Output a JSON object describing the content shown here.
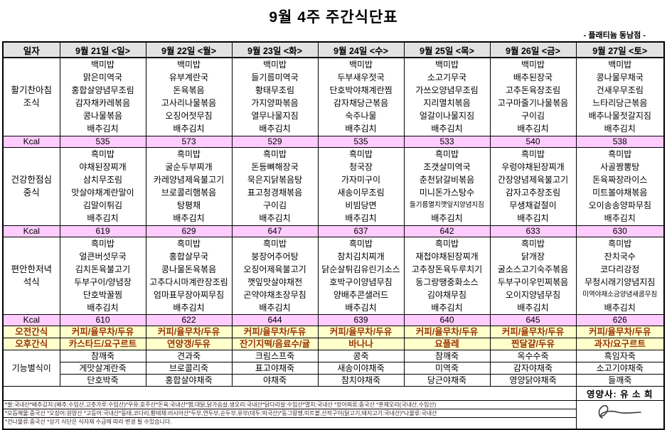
{
  "title": "9월 4주 주간식단표",
  "branch": "- 플래티늄 동남점 -",
  "header": {
    "date_label": "일자",
    "days": [
      "9월 21일 <일>",
      "9월 22일 <월>",
      "9월 23일 <화>",
      "9월 24일 <수>",
      "9월 25일 <목>",
      "9월 26일 <금>",
      "9월 27일 <토>"
    ]
  },
  "kcal_label": "Kcal",
  "meals": {
    "breakfast": {
      "label_lines": [
        "활기찬아침",
        "조식"
      ],
      "days": [
        [
          "백미밥",
          "맑은미역국",
          "홍합살양념무조림",
          "감자채카레볶음",
          "콩나물볶음",
          "배추김치"
        ],
        [
          "백미밥",
          "유부계란국",
          "돈육볶음",
          "고사리나물볶음",
          "오징어젓무침",
          "배추김치"
        ],
        [
          "백미밥",
          "들기름미역국",
          "황태무조림",
          "가지양파볶음",
          "열무나물지짐",
          "배추김치"
        ],
        [
          "백미밥",
          "두부새우젓국",
          "단호박야채계란찜",
          "감자채당근볶음",
          "숙주나물",
          "배추김치"
        ],
        [
          "백미밥",
          "소고기무국",
          "가쓰오양념무조림",
          "지리멸치볶음",
          "얼갈이나물지짐",
          "배추김치"
        ],
        [
          "백미밥",
          "배추된장국",
          "고추돈육장조림",
          "고구마줄기나물볶음",
          "구이김",
          "배추김치"
        ],
        [
          "백미밥",
          "콩나물무채국",
          "건새우무조림",
          "느타리당근볶음",
          "배추나물젓갈지짐",
          "배추김치"
        ]
      ],
      "kcal": [
        "535",
        "573",
        "529",
        "535",
        "533",
        "540",
        "538"
      ]
    },
    "lunch": {
      "label_lines": [
        "건강한점심",
        "중식"
      ],
      "days": [
        [
          "흑미밥",
          "야채된장찌개",
          "삼치무조림",
          "맛살야채계란말이",
          "김말이튀김",
          "배추김치"
        ],
        [
          "흑미밥",
          "굴순두부찌개",
          "카레양념제육불고기",
          "브로콜리햄볶음",
          "탕평채",
          "배추김치"
        ],
        [
          "흑미밥",
          "돈등뼈해장국",
          "묵은지닭볶음탕",
          "표고청경채볶음",
          "구이김",
          "배추김치"
        ],
        [
          "흑미밥",
          "청국장",
          "가자미구이",
          "새송이무조림",
          "비빔당면",
          "배추김치"
        ],
        [
          "흑미밥",
          "조갯살미역국",
          "춘천닭갈비볶음",
          "미니돈가스탕수",
          "들기름멸치깻잎지양념지짐",
          "배추김치"
        ],
        [
          "흑미밥",
          "우렁야채된장찌개",
          "간장양념제육불고기",
          "감자고추장조림",
          "무생채겉절이",
          "배추김치"
        ],
        [
          "흑미밥",
          "사골짬뽕탕",
          "돈육짜장라이스",
          "미트볼야채볶음",
          "오이송송양파무침",
          "배추김치"
        ]
      ],
      "kcal": [
        "619",
        "629",
        "647",
        "637",
        "642",
        "633",
        "630"
      ]
    },
    "dinner": {
      "label_lines": [
        "편안한저녁",
        "석식"
      ],
      "days": [
        [
          "흑미밥",
          "얼큰버섯무국",
          "김치돈육불고기",
          "두부구이/양념장",
          "단호박꿀찜",
          "배추김치"
        ],
        [
          "흑미밥",
          "홍합살무국",
          "콩나물돈육볶음",
          "고추다시마계란장조림",
          "엄마표무장아찌무침",
          "배추김치"
        ],
        [
          "흑미밥",
          "붕장어추어탕",
          "오징어제육불고기",
          "깻잎맛살야채전",
          "곤약야채초장무침",
          "배추김치"
        ],
        [
          "흑미밥",
          "참치김치찌개",
          "닭순살튀김유린기소스",
          "호박구이양념무침",
          "양배추콘샐러드",
          "배추김치"
        ],
        [
          "흑미밥",
          "재첩야채된장찌개",
          "고추장돈육두루치기",
          "동그랑땡중화소스",
          "김야채무침",
          "배추김치"
        ],
        [
          "흑미밥",
          "닭개장",
          "굴소스고기숙주볶음",
          "두부구이우민찌볶음",
          "오이지양념무침",
          "배추김치"
        ],
        [
          "흑미밥",
          "잔치국수",
          "코다리강정",
          "무청시래기양념지짐",
          "미역야채소금양념새콤무침",
          "배추김치"
        ]
      ],
      "kcal": [
        "610",
        "622",
        "644",
        "639",
        "640",
        "645",
        "626"
      ]
    }
  },
  "snacks": {
    "morning": {
      "label": "오전간식",
      "days": [
        "커피/율무차/두유",
        "커피/율무차/두유",
        "커피/율무차/두유",
        "커피/율무차/두유",
        "커피/율무차/두유",
        "커피/율무차/두유",
        "커피/율무차/두유"
      ]
    },
    "afternoon": {
      "label": "오후간식",
      "days": [
        "카스타드/요구르트",
        "연양갱/두유",
        "잔기지떡/음료수/귤",
        "바나나",
        "요플레",
        "찐달걀/두유",
        "과자/요구르트"
      ]
    }
  },
  "functional": {
    "label": "기능별식이",
    "rows": [
      [
        "참깨죽",
        "견과죽",
        "크림스프죽",
        "콩죽",
        "참깨죽",
        "옥수수죽",
        "흑임자죽"
      ],
      [
        "게맛살계란죽",
        "브로콜리죽",
        "표고야채죽",
        "새송이야채죽",
        "미역죽",
        "감자야채죽",
        "소고기야채죽"
      ],
      [
        "단호박죽",
        "홍합살야채죽",
        "야채죽",
        "참치야채죽",
        "당근야채죽",
        "영양닭야채죽",
        "들깨죽"
      ]
    ]
  },
  "footer": {
    "nutritionist": "영양사: 유 소 희",
    "notes": [
      "*쌀:국내산*배추김치:(배추:수입산,고춧가루:수입산)*우유:호주산*돈육:국내산*햄,대닭,닭가슴살,생오리:국내산*닭다리살:수입산*멸치:국내산 *장아찌류:중국산 *훈제오리(국내산,수입산)",
      "*모듬해물:중국산 *오징어:원양산 *고등어:국내산*동태,코다리,황태채:러시아산*두부,연두부,순두부,유부(대두:외국산)*동그랑땡,미트볼,산적구이(닭고기,돼지고기:국내산)*나물류:국내산",
      "*건나물류:중국산  *상기 식단은 식자재 수급에 따라 변경 될 수있습니다."
    ]
  }
}
